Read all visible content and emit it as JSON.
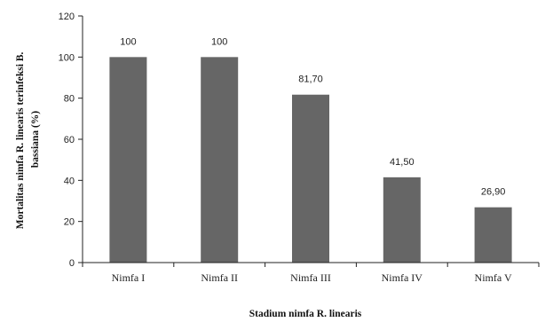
{
  "chart_data": {
    "type": "bar",
    "categories": [
      "Nimfa I",
      "Nimfa II",
      "Nimfa III",
      "Nimfa IV",
      "Nimfa V"
    ],
    "values": [
      100,
      100,
      81.7,
      41.5,
      26.9
    ],
    "value_labels": [
      "100",
      "100",
      "81,70",
      "41,50",
      "26,90"
    ],
    "title": "",
    "xlabel": "Stadium nimfa R. linearis",
    "ylabel_lines": [
      "Mortalitas nimfa R. linearis terinfeksi B.",
      "bassiana (%)"
    ],
    "ylim": [
      0,
      120
    ],
    "yticks": [
      0,
      20,
      40,
      60,
      80,
      100,
      120
    ],
    "grid": false,
    "legend": "none",
    "bar_color": "#666666"
  }
}
